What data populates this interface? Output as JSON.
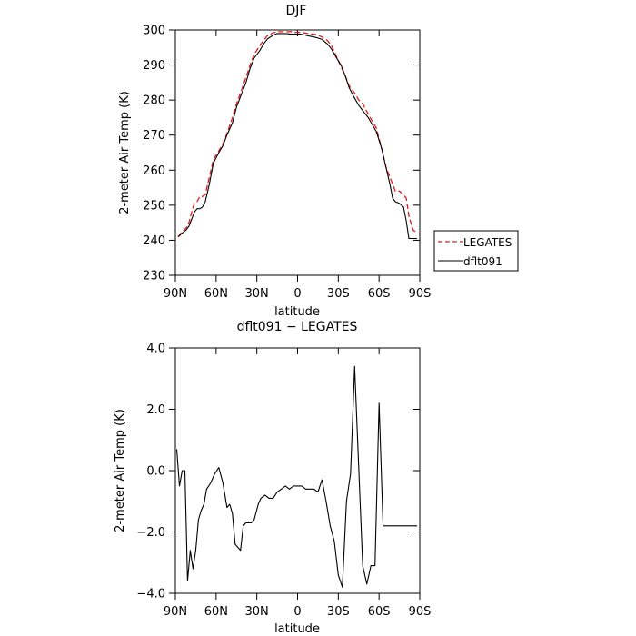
{
  "chart_data": [
    {
      "type": "line",
      "title": "DJF",
      "xlabel": "latitude",
      "ylabel": "2-meter Air Temp (K)",
      "xlim": [
        90,
        -90
      ],
      "ylim": [
        230,
        300
      ],
      "x_ticks": [
        90,
        60,
        30,
        0,
        -30,
        -60,
        -90
      ],
      "x_tick_labels": [
        "90N",
        "60N",
        "30N",
        "0",
        "30S",
        "60S",
        "90S"
      ],
      "y_ticks": [
        230,
        240,
        250,
        260,
        270,
        280,
        290,
        300
      ],
      "y_tick_labels": [
        "230",
        "240",
        "250",
        "260",
        "270",
        "280",
        "290",
        "300"
      ],
      "grid": false,
      "legend": "right",
      "series": [
        {
          "name": "LEGATES",
          "color": "#e31a1c",
          "style": "dashed",
          "x": [
            88,
            85,
            82,
            80,
            78,
            76,
            74,
            72,
            70,
            68,
            65,
            62,
            58,
            55,
            52,
            48,
            45,
            42,
            38,
            35,
            32,
            28,
            25,
            22,
            18,
            15,
            12,
            8,
            5,
            2,
            0,
            -2,
            -5,
            -8,
            -12,
            -15,
            -18,
            -22,
            -25,
            -28,
            -32,
            -35,
            -38,
            -42,
            -45,
            -48,
            -52,
            -55,
            -58,
            -62,
            -65,
            -68,
            -70,
            -72,
            -75,
            -78,
            -80,
            -82,
            -85,
            -88
          ],
          "y": [
            241,
            242.5,
            243.5,
            245,
            248,
            250.5,
            251,
            252.5,
            252.5,
            253,
            258,
            263,
            265.5,
            267.5,
            270.5,
            275,
            279,
            282,
            286.5,
            290,
            293,
            295.5,
            297,
            298.5,
            299.2,
            299.5,
            299.5,
            299.5,
            299.5,
            299.3,
            299.3,
            299.3,
            299.2,
            299,
            298.8,
            298.5,
            298,
            297,
            295.5,
            293,
            289.5,
            287,
            284,
            282,
            280,
            279,
            276,
            274,
            272,
            266,
            261,
            258,
            256,
            254,
            254,
            253,
            252,
            247,
            243,
            242
          ]
        },
        {
          "name": "dflt091",
          "color": "#000000",
          "style": "solid",
          "x": [
            88,
            85,
            82,
            80,
            78,
            76,
            74,
            72,
            70,
            68,
            65,
            62,
            58,
            55,
            52,
            48,
            45,
            42,
            38,
            35,
            32,
            28,
            25,
            22,
            18,
            15,
            12,
            8,
            5,
            2,
            0,
            -2,
            -5,
            -8,
            -12,
            -15,
            -18,
            -22,
            -25,
            -28,
            -32,
            -35,
            -38,
            -42,
            -45,
            -48,
            -52,
            -55,
            -58,
            -62,
            -65,
            -68,
            -70,
            -72,
            -75,
            -78,
            -80,
            -82,
            -85,
            -88
          ],
          "y": [
            241,
            242,
            243,
            244,
            246,
            248,
            249,
            249,
            249.5,
            251,
            256,
            262,
            265,
            267,
            270,
            273.5,
            278,
            281,
            285,
            289,
            292,
            294,
            296,
            297.5,
            298.5,
            299,
            299,
            299,
            298.8,
            298.8,
            298.8,
            298.8,
            298.6,
            298.3,
            298,
            297.7,
            297.3,
            296,
            294.5,
            292.5,
            290,
            287,
            283.5,
            280.5,
            278.5,
            277,
            275,
            273,
            271,
            266,
            261,
            256,
            252,
            251,
            250.5,
            249.5,
            245.5,
            240.5,
            240.5,
            240.5
          ]
        }
      ]
    },
    {
      "type": "line",
      "title": "dflt091 − LEGATES",
      "xlabel": "latitude",
      "ylabel": "2-meter Air Temp (K)",
      "xlim": [
        90,
        -90
      ],
      "ylim": [
        -4,
        4
      ],
      "x_ticks": [
        90,
        60,
        30,
        0,
        -30,
        -60,
        -90
      ],
      "x_tick_labels": [
        "90N",
        "60N",
        "30N",
        "0",
        "30S",
        "60S",
        "90S"
      ],
      "y_ticks": [
        -4,
        -2,
        0,
        2,
        4
      ],
      "y_tick_labels": [
        "−4.0",
        "−2.0",
        "0.0",
        "2.0",
        "4.0"
      ],
      "grid": false,
      "series": [
        {
          "name": "",
          "color": "#000000",
          "style": "solid",
          "x": [
            89,
            87,
            85,
            83,
            81,
            79,
            77,
            75,
            73,
            71,
            69,
            67,
            64,
            61,
            58,
            55,
            52,
            50,
            48,
            46,
            44,
            42,
            40,
            38,
            36,
            34,
            32,
            29,
            27,
            24,
            21,
            18,
            15,
            12,
            9,
            6,
            3,
            0,
            -3,
            -6,
            -9,
            -12,
            -15,
            -18,
            -21,
            -24,
            -27,
            -30,
            -33,
            -36,
            -39,
            -42,
            -45,
            -48,
            -51,
            -54,
            -57,
            -60,
            -63,
            -66,
            -69,
            -72,
            -75,
            -78,
            -81,
            -84,
            -86,
            -88
          ],
          "y": [
            0.7,
            -0.5,
            0,
            0,
            -3.6,
            -2.6,
            -3.2,
            -2.6,
            -1.6,
            -1.3,
            -1.1,
            -0.6,
            -0.4,
            -0.1,
            0.1,
            -0.4,
            -1.2,
            -1.1,
            -1.4,
            -2.4,
            -2.5,
            -2.6,
            -1.8,
            -1.7,
            -1.7,
            -1.7,
            -1.6,
            -1.1,
            -0.9,
            -0.8,
            -0.9,
            -0.9,
            -0.7,
            -0.6,
            -0.5,
            -0.6,
            -0.5,
            -0.5,
            -0.5,
            -0.6,
            -0.6,
            -0.6,
            -0.7,
            -0.3,
            -1.0,
            -1.8,
            -2.3,
            -3.4,
            -3.8,
            -1.0,
            -0.1,
            3.4,
            0.1,
            -3.1,
            -3.7,
            -3.1,
            -3.1,
            2.2,
            -1.8,
            -1.8,
            -1.8,
            -1.8,
            -1.8,
            -1.8,
            -1.8,
            -1.8,
            -1.8,
            -1.8
          ]
        }
      ]
    }
  ]
}
